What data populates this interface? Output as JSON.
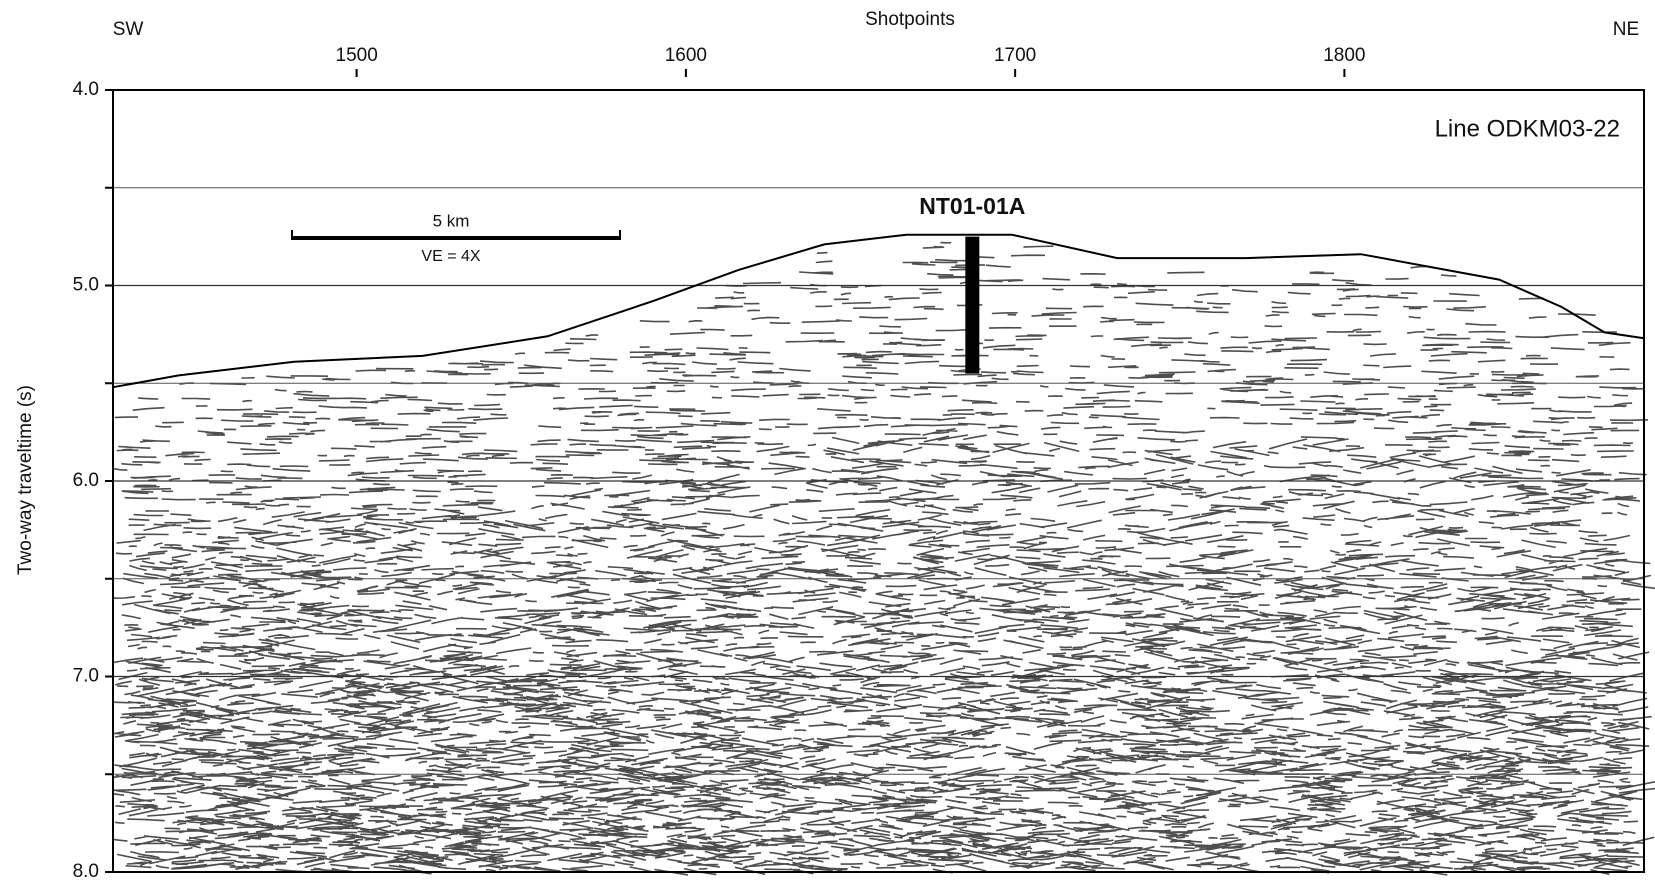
{
  "chart_data": {
    "type": "seismic",
    "title": "Shotpoints",
    "ylabel": "Two-way traveltime (s)",
    "left_label": "SW",
    "right_label": "NE",
    "line_label": "Line ODKM03-22",
    "xlim": [
      1426,
      1891
    ],
    "xticks": [
      1500,
      1600,
      1700,
      1800
    ],
    "ylim": [
      8,
      4
    ],
    "yticks": [
      {
        "value": 4,
        "label": "4.0"
      },
      {
        "value": 5,
        "label": "5.0"
      },
      {
        "value": 6,
        "label": "6.0"
      },
      {
        "value": 7,
        "label": "7.0"
      },
      {
        "value": 8,
        "label": "8.0"
      }
    ],
    "minor_yticks": [
      4.5,
      5.5,
      6.5,
      7.5
    ],
    "grid": true,
    "series": [
      {
        "color": "#000000",
        "x": [
          1426,
          1446,
          1481,
          1520,
          1558,
          1590,
          1616,
          1642,
          1667,
          1699,
          1731,
          1770,
          1805,
          1847,
          1866,
          1879,
          1891
        ],
        "values": [
          5.52,
          5.46,
          5.39,
          5.36,
          5.26,
          5.08,
          4.92,
          4.79,
          4.74,
          4.74,
          4.86,
          4.86,
          4.84,
          4.97,
          5.11,
          5.24,
          5.27
        ]
      }
    ],
    "well": {
      "label": "NT01-01A",
      "x": 1687,
      "top": 4.75,
      "bottom": 5.45
    },
    "scale_bar": {
      "label": "5 km",
      "note": "VE = 4X"
    }
  }
}
